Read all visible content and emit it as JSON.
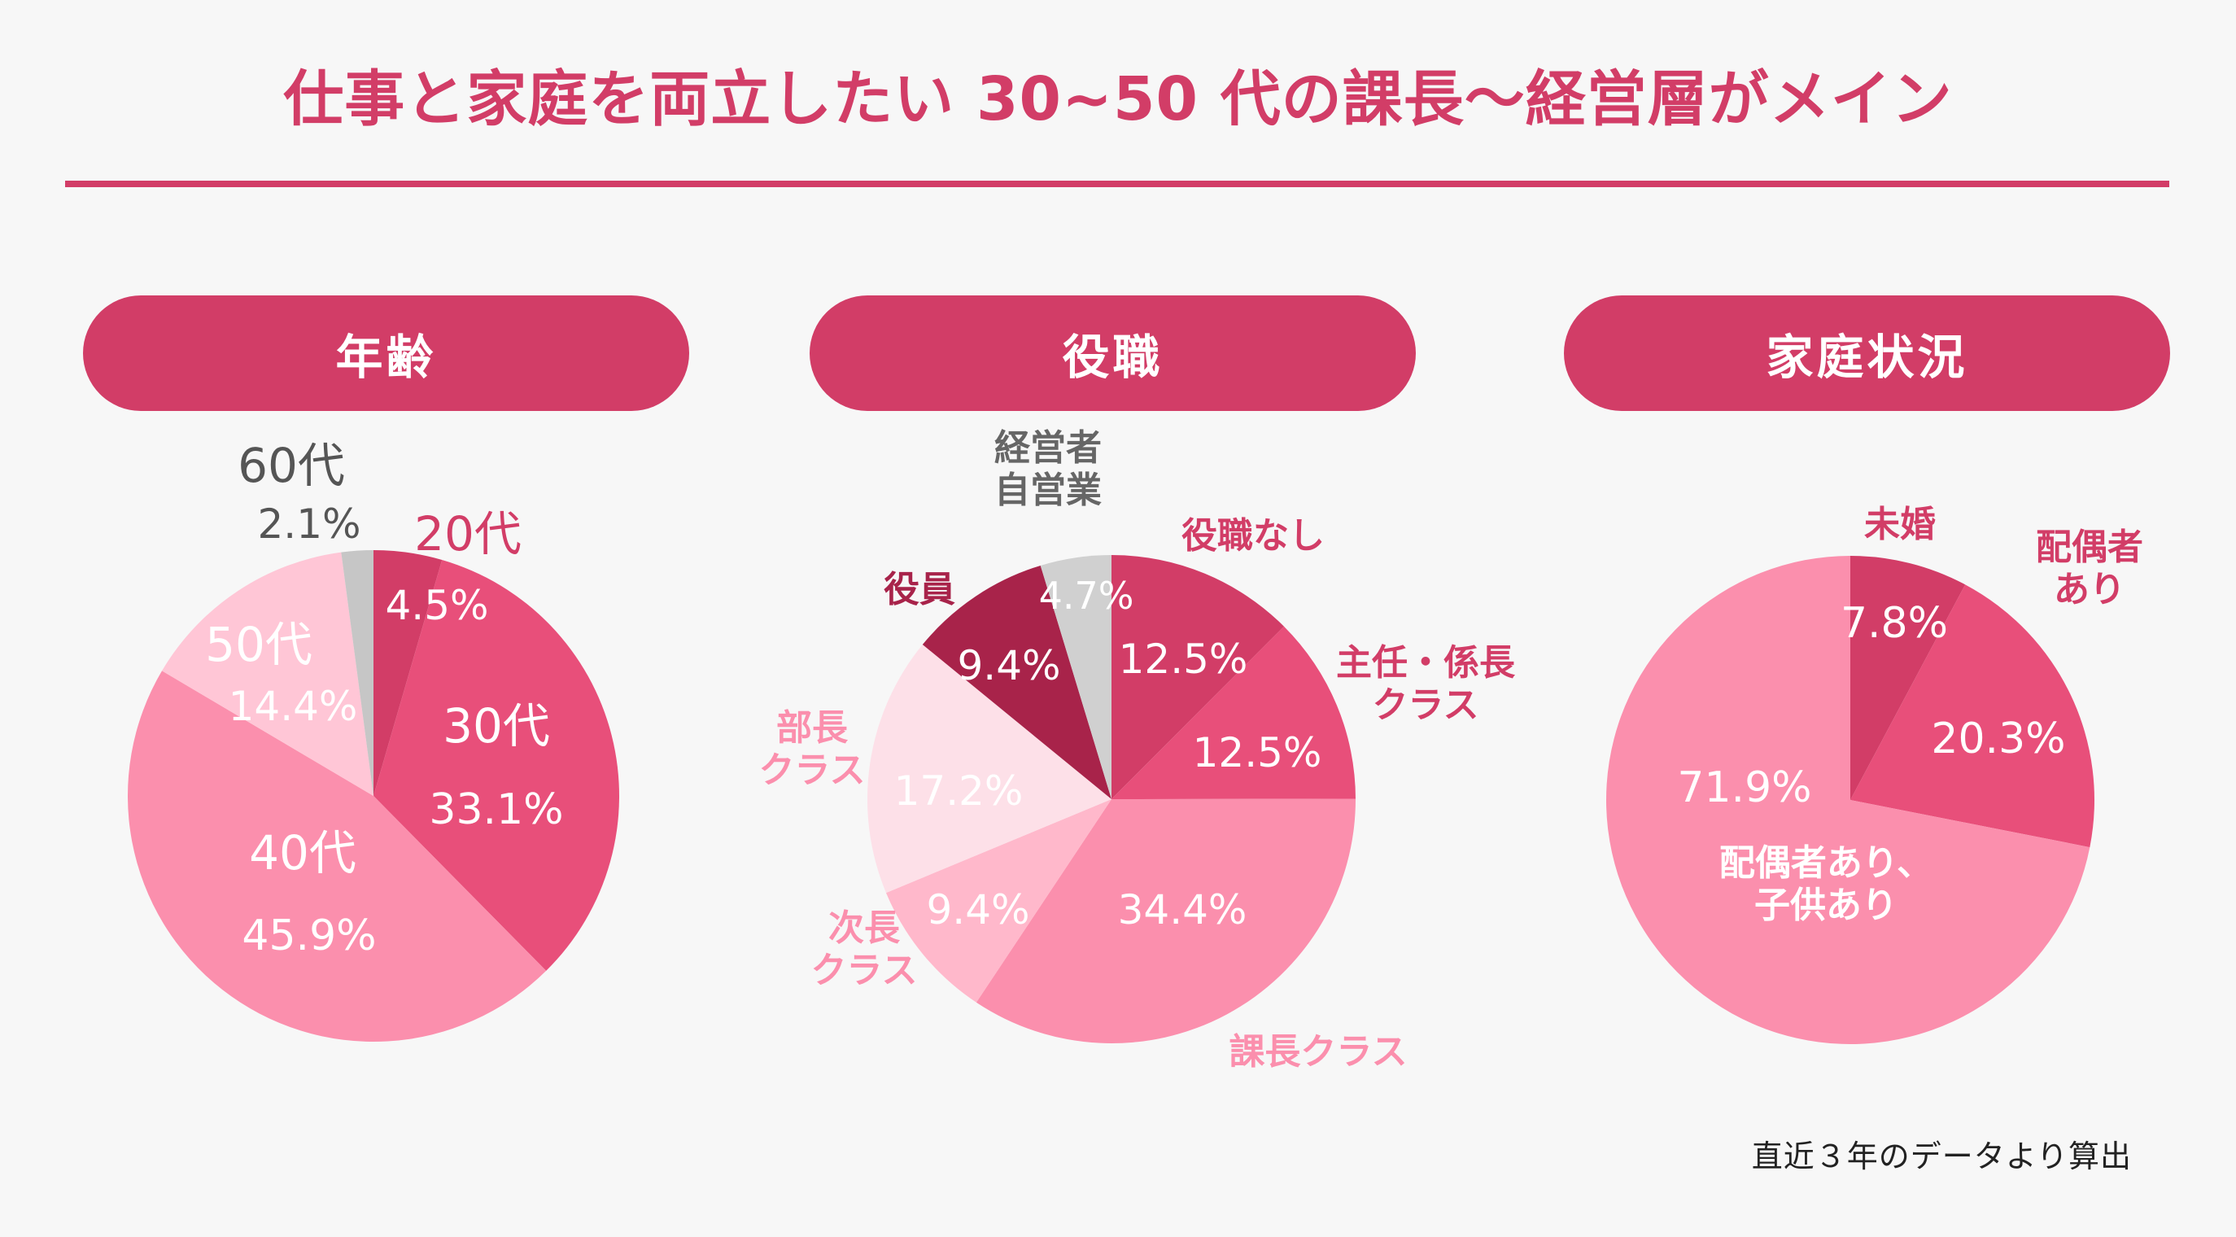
{
  "title": "仕事と家庭を両立したい 30~50 代の課長〜経営層がメイン",
  "footnote": "直近３年のデータより算出",
  "chart_data": [
    {
      "type": "pie",
      "title": "年齢",
      "slices": [
        {
          "label": "20代",
          "value": 4.5,
          "pct": "4.5%",
          "color": "#d23d67"
        },
        {
          "label": "30代",
          "value": 33.1,
          "pct": "33.1%",
          "color": "#e84f7a"
        },
        {
          "label": "40代",
          "value": 45.9,
          "pct": "45.9%",
          "color": "#fb8fad"
        },
        {
          "label": "50代",
          "value": 14.4,
          "pct": "14.4%",
          "color": "#ffc6d6"
        },
        {
          "label": "60代",
          "value": 2.1,
          "pct": "2.1%",
          "color": "#c6c6c6"
        }
      ]
    },
    {
      "type": "pie",
      "title": "役職",
      "slices": [
        {
          "label": "役職なし",
          "value": 12.5,
          "pct": "12.5%",
          "color": "#d23d67"
        },
        {
          "label": "主任・係長\nクラス",
          "value": 12.5,
          "pct": "12.5%",
          "color": "#e84f7a"
        },
        {
          "label": "課長クラス",
          "value": 34.4,
          "pct": "34.4%",
          "color": "#fb8fad"
        },
        {
          "label": "次長\nクラス",
          "value": 9.4,
          "pct": "9.4%",
          "color": "#ffb8cb"
        },
        {
          "label": "部長\nクラス",
          "value": 17.2,
          "pct": "17.2%",
          "color": "#fde0e8"
        },
        {
          "label": "役員",
          "value": 9.4,
          "pct": "9.4%",
          "color": "#a8234a"
        },
        {
          "label": "経営者\n自営業",
          "value": 4.7,
          "pct": "4.7%",
          "color": "#d0d0d0"
        }
      ]
    },
    {
      "type": "pie",
      "title": "家庭状況",
      "slices": [
        {
          "label": "未婚",
          "value": 7.8,
          "pct": "7.8%",
          "color": "#d23d67"
        },
        {
          "label": "配偶者\nあり",
          "value": 20.3,
          "pct": "20.3%",
          "color": "#e84f7a"
        },
        {
          "label": "配偶者あり、\n子供あり",
          "value": 71.9,
          "pct": "71.9%",
          "color": "#fb8fad"
        }
      ]
    }
  ]
}
